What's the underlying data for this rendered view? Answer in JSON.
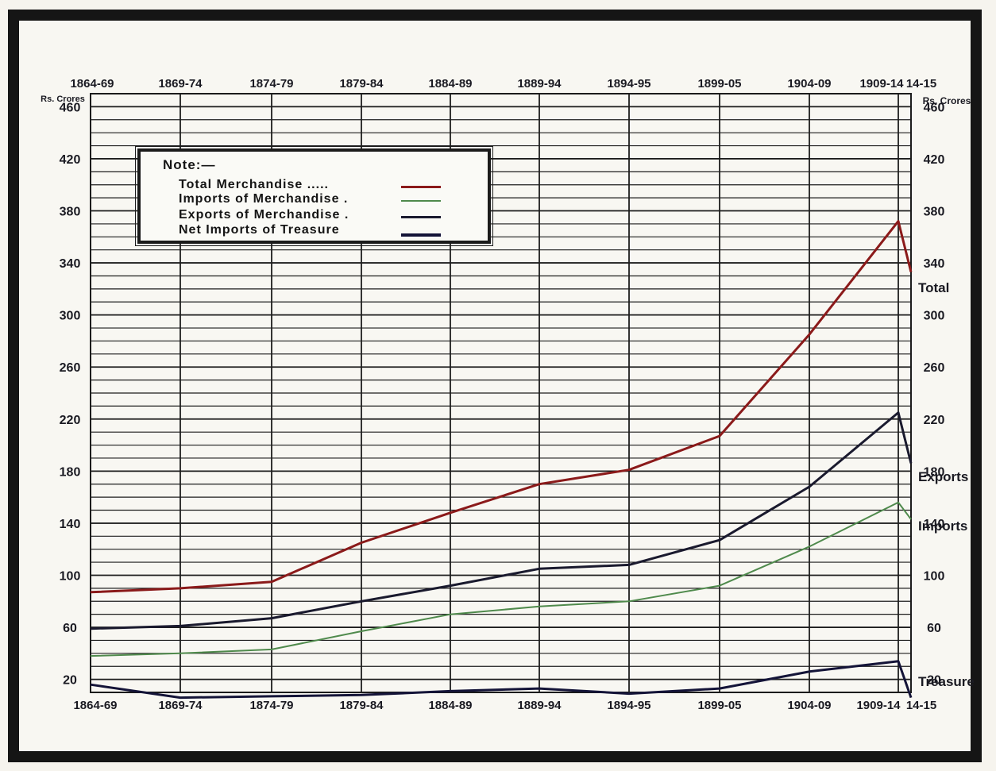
{
  "chart_data": {
    "type": "line",
    "categories": [
      "1864-69",
      "1869-74",
      "1874-79",
      "1879-84",
      "1884-89",
      "1889-94",
      "1894-95",
      "1899-05",
      "1904-09",
      "1909-14",
      "14-15"
    ],
    "top_ticks": [
      "1864-69",
      "1869-74",
      "1874-79",
      "1879-84",
      "1884-89",
      "1889-94",
      "1894-95",
      "1899-05",
      "1904-09",
      "1909-14",
      "14-15"
    ],
    "bottom_ticks": [
      "1864-69",
      "1869-74",
      "1874-79",
      "1879-84",
      "1884-89",
      "1889-94",
      "1894-95",
      "1899-05",
      "1904-09",
      "1909-14",
      "14-15"
    ],
    "y_ticks_left": [
      "460",
      "420",
      "380",
      "340",
      "300",
      "260",
      "220",
      "180",
      "140",
      "100",
      "60",
      "20"
    ],
    "y_ticks_right": [
      "460",
      "420",
      "380",
      "340",
      "300",
      "260",
      "220",
      "180",
      "140",
      "100",
      "60",
      "20"
    ],
    "ylabel_left": "Rs. Crores",
    "ylabel_right": "Rs. Crores",
    "ylim": [
      10,
      470
    ],
    "series": [
      {
        "name": "Total Merchandise",
        "color": "#8b1a1a",
        "values": [
          87,
          90,
          95,
          125,
          148,
          170,
          181,
          207,
          285,
          372,
          333
        ]
      },
      {
        "name": "Imports of Merchandise",
        "color": "#4f8a4c",
        "values": [
          38,
          40,
          43,
          57,
          70,
          76,
          80,
          92,
          122,
          156,
          143
        ]
      },
      {
        "name": "Exports of Merchandise",
        "color": "#1a1a2e",
        "values": [
          59,
          61,
          67,
          80,
          92,
          105,
          108,
          127,
          168,
          225,
          186
        ]
      },
      {
        "name": "Net Imports of Treasure",
        "color": "#141438",
        "values": [
          16,
          6,
          7,
          8,
          11,
          13,
          9,
          13,
          26,
          34,
          6
        ]
      }
    ],
    "end_labels": [
      "Total",
      "Exports",
      "Imports",
      "Treasure"
    ],
    "grid": true,
    "legend": {
      "title": "Note:—",
      "position": "top-left",
      "entries": [
        "Total Merchandise .....",
        "Imports of Merchandise .",
        "Exports of Merchandise .",
        "Net Imports of Treasure"
      ]
    }
  }
}
